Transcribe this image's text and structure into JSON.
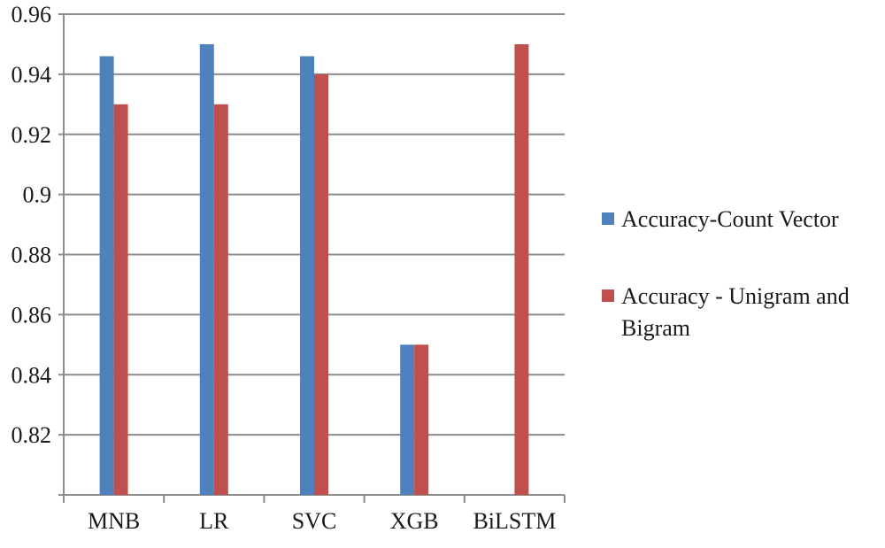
{
  "chart_data": {
    "type": "bar",
    "title": "",
    "xlabel": "",
    "ylabel": "",
    "categories": [
      "MNB",
      "LR",
      "SVC",
      "XGB",
      "BiLSTM"
    ],
    "series": [
      {
        "name": "Accuracy-Count Vector",
        "color": "#4F81BD",
        "values": [
          0.946,
          0.95,
          0.946,
          0.85,
          null
        ]
      },
      {
        "name_lines": [
          "Accuracy - Unigram and",
          "Bigram"
        ],
        "color": "#C0504D",
        "values": [
          0.93,
          0.93,
          0.94,
          0.85,
          0.95
        ]
      }
    ],
    "ylim": [
      0.8,
      0.96
    ],
    "yticks": [
      "0.82",
      "0.84",
      "0.86",
      "0.88",
      "0.9",
      "0.92",
      "0.94",
      "0.96"
    ],
    "grid": true,
    "legend_position": "right"
  }
}
